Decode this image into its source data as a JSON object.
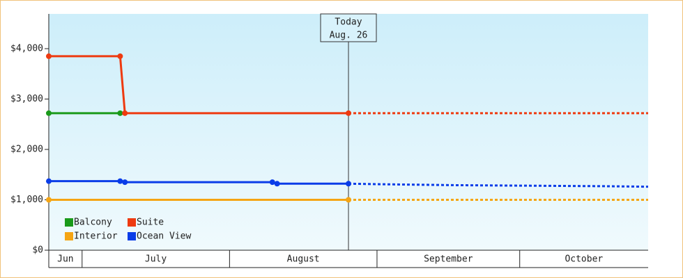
{
  "chart_data": {
    "type": "line",
    "ylim": [
      0,
      4690
    ],
    "yticks": [
      {
        "value": 0,
        "label": "$0"
      },
      {
        "value": 1000,
        "label": "$1,000"
      },
      {
        "value": 2000,
        "label": "$2,000"
      },
      {
        "value": 3000,
        "label": "$3,000"
      },
      {
        "value": 4000,
        "label": "$4,000"
      }
    ],
    "xlim": [
      175,
      301
    ],
    "months": [
      {
        "label": "Jun",
        "start": 175,
        "end": 182
      },
      {
        "label": "July",
        "start": 182,
        "end": 213
      },
      {
        "label": "August",
        "start": 213,
        "end": 244
      },
      {
        "label": "September",
        "start": 244,
        "end": 274
      },
      {
        "label": "October",
        "start": 274,
        "end": 301
      }
    ],
    "annotation": {
      "x": 238,
      "lines": [
        "Today",
        "Aug. 26"
      ]
    },
    "series": [
      {
        "name": "Balcony",
        "color": "#1a9a1a",
        "x": [
          175,
          190
        ],
        "values": [
          2720,
          2720
        ]
      },
      {
        "name": "Suite",
        "color": "#ee3a10",
        "x": [
          175,
          190,
          191,
          238
        ],
        "values": [
          3850,
          3850,
          2720,
          2720
        ],
        "forecast": {
          "x": [
            238,
            301
          ],
          "values": [
            2720,
            2720
          ]
        }
      },
      {
        "name": "Interior",
        "color": "#f5a514",
        "x": [
          175,
          238
        ],
        "values": [
          1000,
          1000
        ],
        "forecast": {
          "x": [
            238,
            301
          ],
          "values": [
            1000,
            1000
          ]
        }
      },
      {
        "name": "Ocean View",
        "color": "#0a3de8",
        "x": [
          175,
          190,
          191,
          222,
          223,
          238
        ],
        "values": [
          1370,
          1370,
          1350,
          1350,
          1320,
          1320
        ],
        "forecast": {
          "x": [
            238,
            244,
            261,
            292,
            301
          ],
          "values": [
            1320,
            1310,
            1290,
            1270,
            1260
          ]
        }
      }
    ]
  }
}
